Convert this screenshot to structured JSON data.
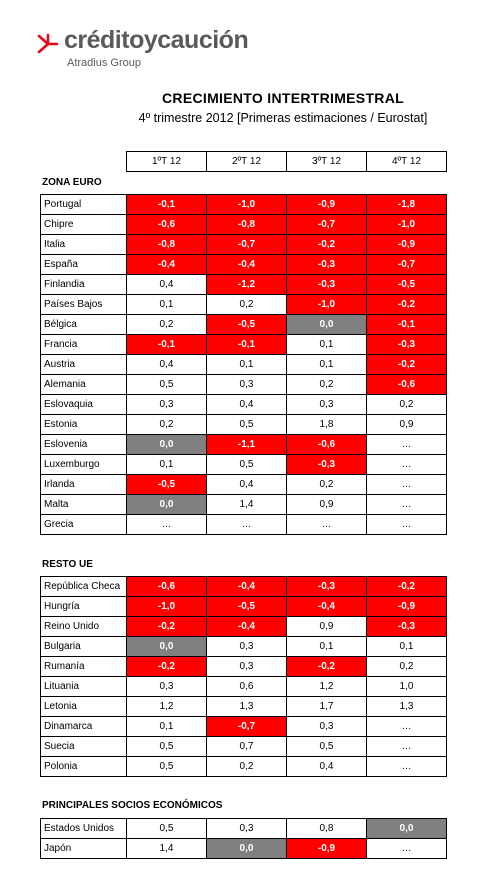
{
  "brand": {
    "name": "créditoycaución",
    "sub": "Atradius Group"
  },
  "title": "CRECIMIENTO INTERTRIMESTRAL",
  "subtitle": "4º trimestre 2012 [Primeras estimaciones / Eurostat]",
  "columns": [
    "1ºT 12",
    "2ºT 12",
    "3ºT 12",
    "4ºT 12"
  ],
  "colors": {
    "negative": "#ff0000",
    "zero": "#808080"
  },
  "sections": [
    {
      "title": "ZONA EURO",
      "rows": [
        {
          "country": "Portugal",
          "values": [
            "-0,1",
            "-1,0",
            "-0,9",
            "-1,8"
          ]
        },
        {
          "country": "Chipre",
          "values": [
            "-0,6",
            "-0,8",
            "-0,7",
            "-1,0"
          ]
        },
        {
          "country": "Italia",
          "values": [
            "-0,8",
            "-0,7",
            "-0,2",
            "-0,9"
          ]
        },
        {
          "country": "España",
          "values": [
            "-0,4",
            "-0,4",
            "-0,3",
            "-0,7"
          ]
        },
        {
          "country": "Finlandia",
          "values": [
            "0,4",
            "-1,2",
            "-0,3",
            "-0,5"
          ]
        },
        {
          "country": "Países Bajos",
          "values": [
            "0,1",
            "0,2",
            "-1,0",
            "-0,2"
          ]
        },
        {
          "country": "Bélgica",
          "values": [
            "0,2",
            "-0,5",
            "0,0",
            "-0,1"
          ]
        },
        {
          "country": "Francia",
          "values": [
            "-0,1",
            "-0,1",
            "0,1",
            "-0,3"
          ]
        },
        {
          "country": "Austria",
          "values": [
            "0,4",
            "0,1",
            "0,1",
            "-0,2"
          ]
        },
        {
          "country": "Alemania",
          "values": [
            "0,5",
            "0,3",
            "0,2",
            "-0,6"
          ]
        },
        {
          "country": "Eslovaquia",
          "values": [
            "0,3",
            "0,4",
            "0,3",
            "0,2"
          ]
        },
        {
          "country": "Estonia",
          "values": [
            "0,2",
            "0,5",
            "1,8",
            "0,9"
          ]
        },
        {
          "country": "Eslovenia",
          "values": [
            "0,0",
            "-1,1",
            "-0,6",
            "…"
          ]
        },
        {
          "country": "Luxemburgo",
          "values": [
            "0,1",
            "0,5",
            "-0,3",
            "…"
          ]
        },
        {
          "country": "Irlanda",
          "values": [
            "-0,5",
            "0,4",
            "0,2",
            "…"
          ]
        },
        {
          "country": "Malta",
          "values": [
            "0,0",
            "1,4",
            "0,9",
            "…"
          ]
        },
        {
          "country": "Grecia",
          "values": [
            "…",
            "…",
            "…",
            "…"
          ]
        }
      ]
    },
    {
      "title": "RESTO UE",
      "rows": [
        {
          "country": "República Checa",
          "values": [
            "-0,6",
            "-0,4",
            "-0,3",
            "-0,2"
          ]
        },
        {
          "country": "Hungría",
          "values": [
            "-1,0",
            "-0,5",
            "-0,4",
            "-0,9"
          ]
        },
        {
          "country": "Reino Unido",
          "values": [
            "-0,2",
            "-0,4",
            "0,9",
            "-0,3"
          ]
        },
        {
          "country": "Bulgaria",
          "values": [
            "0,0",
            "0,3",
            "0,1",
            "0,1"
          ]
        },
        {
          "country": "Rumanía",
          "values": [
            "-0,2",
            "0,3",
            "-0,2",
            "0,2"
          ]
        },
        {
          "country": "Lituania",
          "values": [
            "0,3",
            "0,6",
            "1,2",
            "1,0"
          ]
        },
        {
          "country": "Letonia",
          "values": [
            "1,2",
            "1,3",
            "1,7",
            "1,3"
          ]
        },
        {
          "country": "Dinamarca",
          "values": [
            "0,1",
            "-0,7",
            "0,3",
            "…"
          ]
        },
        {
          "country": "Suecia",
          "values": [
            "0,5",
            "0,7",
            "0,5",
            "…"
          ]
        },
        {
          "country": "Polonia",
          "values": [
            "0,5",
            "0,2",
            "0,4",
            "…"
          ]
        }
      ]
    },
    {
      "title": "PRINCIPALES SOCIOS ECONÓMICOS",
      "rows": [
        {
          "country": "Estados Unidos",
          "values": [
            "0,5",
            "0,3",
            "0,8",
            "0,0"
          ]
        },
        {
          "country": "Japón",
          "values": [
            "1,4",
            "0,0",
            "-0,9",
            "…"
          ]
        }
      ]
    }
  ]
}
